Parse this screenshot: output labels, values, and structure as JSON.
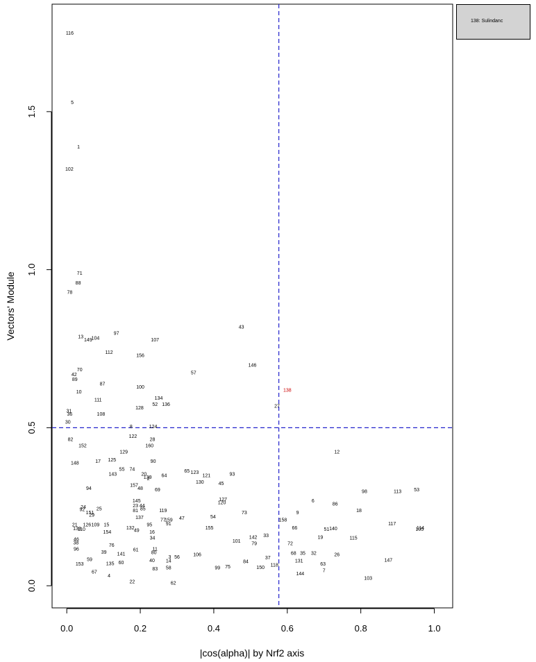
{
  "chart_data": {
    "type": "scatter",
    "xlabel": "|cos(alpha)| by Nrf2 axis",
    "ylabel": "Vectors' Module",
    "xlim": [
      -0.04,
      1.05
    ],
    "ylim": [
      -0.07,
      1.84
    ],
    "x_ticks": [
      "0.0",
      "0.2",
      "0.4",
      "0.6",
      "0.8",
      "1.0"
    ],
    "y_ticks": [
      "0.0",
      "0.5",
      "1.0",
      "1.5"
    ],
    "x_tick_values": [
      0,
      0.2,
      0.4,
      0.6,
      0.8,
      1.0
    ],
    "y_tick_values": [
      0,
      0.5,
      1.0,
      1.5
    ],
    "threshold_x": 0.577,
    "threshold_y": 0.5,
    "threshold_color": "#2222cc",
    "highlight_color": "#cc0000",
    "legend": "138: Sulindanc",
    "points": [
      {
        "label": "116",
        "x": 0.008,
        "y": 1.75
      },
      {
        "label": "5",
        "x": 0.015,
        "y": 1.53
      },
      {
        "label": "1",
        "x": 0.032,
        "y": 1.39
      },
      {
        "label": "102",
        "x": 0.007,
        "y": 1.32
      },
      {
        "label": "71",
        "x": 0.035,
        "y": 0.99
      },
      {
        "label": "88",
        "x": 0.031,
        "y": 0.96
      },
      {
        "label": "78",
        "x": 0.008,
        "y": 0.93
      },
      {
        "label": "43",
        "x": 0.475,
        "y": 0.82
      },
      {
        "label": "97",
        "x": 0.135,
        "y": 0.8
      },
      {
        "label": "13",
        "x": 0.038,
        "y": 0.79
      },
      {
        "label": "149",
        "x": 0.058,
        "y": 0.78
      },
      {
        "label": "104",
        "x": 0.078,
        "y": 0.785
      },
      {
        "label": "107",
        "x": 0.24,
        "y": 0.78
      },
      {
        "label": "112",
        "x": 0.115,
        "y": 0.74
      },
      {
        "label": "156",
        "x": 0.2,
        "y": 0.73
      },
      {
        "label": "146",
        "x": 0.505,
        "y": 0.7
      },
      {
        "label": "57",
        "x": 0.345,
        "y": 0.675
      },
      {
        "label": "70",
        "x": 0.035,
        "y": 0.685
      },
      {
        "label": "42",
        "x": 0.02,
        "y": 0.67
      },
      {
        "label": "89",
        "x": 0.022,
        "y": 0.655
      },
      {
        "label": "87",
        "x": 0.097,
        "y": 0.64
      },
      {
        "label": "100",
        "x": 0.2,
        "y": 0.63
      },
      {
        "label": "138",
        "x": 0.6,
        "y": 0.62,
        "highlight": true
      },
      {
        "label": "10",
        "x": 0.033,
        "y": 0.615
      },
      {
        "label": "134",
        "x": 0.25,
        "y": 0.595
      },
      {
        "label": "111",
        "x": 0.085,
        "y": 0.59
      },
      {
        "label": "52",
        "x": 0.24,
        "y": 0.575
      },
      {
        "label": "136",
        "x": 0.27,
        "y": 0.575
      },
      {
        "label": "27",
        "x": 0.572,
        "y": 0.57
      },
      {
        "label": "128",
        "x": 0.198,
        "y": 0.565
      },
      {
        "label": "31",
        "x": 0.006,
        "y": 0.555
      },
      {
        "label": "36",
        "x": 0.008,
        "y": 0.545
      },
      {
        "label": "108",
        "x": 0.093,
        "y": 0.545
      },
      {
        "label": "30",
        "x": 0.003,
        "y": 0.52
      },
      {
        "label": "8",
        "x": 0.175,
        "y": 0.505
      },
      {
        "label": "124",
        "x": 0.235,
        "y": 0.505
      },
      {
        "label": "122",
        "x": 0.18,
        "y": 0.475
      },
      {
        "label": "82",
        "x": 0.01,
        "y": 0.465
      },
      {
        "label": "28",
        "x": 0.233,
        "y": 0.465
      },
      {
        "label": "152",
        "x": 0.043,
        "y": 0.445
      },
      {
        "label": "160",
        "x": 0.225,
        "y": 0.445
      },
      {
        "label": "12",
        "x": 0.735,
        "y": 0.425
      },
      {
        "label": "129",
        "x": 0.155,
        "y": 0.425
      },
      {
        "label": "125",
        "x": 0.123,
        "y": 0.4
      },
      {
        "label": "17",
        "x": 0.085,
        "y": 0.395
      },
      {
        "label": "90",
        "x": 0.235,
        "y": 0.395
      },
      {
        "label": "148",
        "x": 0.022,
        "y": 0.39
      },
      {
        "label": "55",
        "x": 0.15,
        "y": 0.37
      },
      {
        "label": "74",
        "x": 0.178,
        "y": 0.37
      },
      {
        "label": "65",
        "x": 0.327,
        "y": 0.365
      },
      {
        "label": "123",
        "x": 0.348,
        "y": 0.36
      },
      {
        "label": "93",
        "x": 0.45,
        "y": 0.355
      },
      {
        "label": "121",
        "x": 0.38,
        "y": 0.35
      },
      {
        "label": "143",
        "x": 0.125,
        "y": 0.355
      },
      {
        "label": "20",
        "x": 0.21,
        "y": 0.355
      },
      {
        "label": "139",
        "x": 0.22,
        "y": 0.345
      },
      {
        "label": "64",
        "x": 0.265,
        "y": 0.35
      },
      {
        "label": "2",
        "x": 0.222,
        "y": 0.34
      },
      {
        "label": "130",
        "x": 0.362,
        "y": 0.33
      },
      {
        "label": "45",
        "x": 0.42,
        "y": 0.325
      },
      {
        "label": "157",
        "x": 0.183,
        "y": 0.32
      },
      {
        "label": "48",
        "x": 0.2,
        "y": 0.31
      },
      {
        "label": "94",
        "x": 0.06,
        "y": 0.31
      },
      {
        "label": "69",
        "x": 0.247,
        "y": 0.305
      },
      {
        "label": "98",
        "x": 0.81,
        "y": 0.3
      },
      {
        "label": "113",
        "x": 0.9,
        "y": 0.3
      },
      {
        "label": "53",
        "x": 0.952,
        "y": 0.305
      },
      {
        "label": "127",
        "x": 0.425,
        "y": 0.275
      },
      {
        "label": "6",
        "x": 0.67,
        "y": 0.27
      },
      {
        "label": "145",
        "x": 0.19,
        "y": 0.27
      },
      {
        "label": "120",
        "x": 0.422,
        "y": 0.265
      },
      {
        "label": "86",
        "x": 0.73,
        "y": 0.26
      },
      {
        "label": "23",
        "x": 0.187,
        "y": 0.255
      },
      {
        "label": "44",
        "x": 0.205,
        "y": 0.255
      },
      {
        "label": "24",
        "x": 0.045,
        "y": 0.25
      },
      {
        "label": "92",
        "x": 0.042,
        "y": 0.243
      },
      {
        "label": "85",
        "x": 0.207,
        "y": 0.245
      },
      {
        "label": "25",
        "x": 0.088,
        "y": 0.245
      },
      {
        "label": "18",
        "x": 0.795,
        "y": 0.24
      },
      {
        "label": "81",
        "x": 0.187,
        "y": 0.24
      },
      {
        "label": "119",
        "x": 0.262,
        "y": 0.24
      },
      {
        "label": "151",
        "x": 0.063,
        "y": 0.233
      },
      {
        "label": "73",
        "x": 0.483,
        "y": 0.233
      },
      {
        "label": "9",
        "x": 0.628,
        "y": 0.233
      },
      {
        "label": "29",
        "x": 0.068,
        "y": 0.225
      },
      {
        "label": "137",
        "x": 0.198,
        "y": 0.218
      },
      {
        "label": "54",
        "x": 0.398,
        "y": 0.22
      },
      {
        "label": "47",
        "x": 0.313,
        "y": 0.215
      },
      {
        "label": "77",
        "x": 0.262,
        "y": 0.21
      },
      {
        "label": "159",
        "x": 0.277,
        "y": 0.21
      },
      {
        "label": "158",
        "x": 0.588,
        "y": 0.21
      },
      {
        "label": "91",
        "x": 0.277,
        "y": 0.198
      },
      {
        "label": "95",
        "x": 0.225,
        "y": 0.195
      },
      {
        "label": "21",
        "x": 0.022,
        "y": 0.195
      },
      {
        "label": "126",
        "x": 0.055,
        "y": 0.195
      },
      {
        "label": "109",
        "x": 0.078,
        "y": 0.195
      },
      {
        "label": "15",
        "x": 0.108,
        "y": 0.195
      },
      {
        "label": "117",
        "x": 0.885,
        "y": 0.198
      },
      {
        "label": "133",
        "x": 0.028,
        "y": 0.182
      },
      {
        "label": "110",
        "x": 0.04,
        "y": 0.18
      },
      {
        "label": "132",
        "x": 0.173,
        "y": 0.185
      },
      {
        "label": "49",
        "x": 0.19,
        "y": 0.177
      },
      {
        "label": "66",
        "x": 0.62,
        "y": 0.185
      },
      {
        "label": "51",
        "x": 0.707,
        "y": 0.18
      },
      {
        "label": "140",
        "x": 0.725,
        "y": 0.182
      },
      {
        "label": "155",
        "x": 0.388,
        "y": 0.185
      },
      {
        "label": "114",
        "x": 0.962,
        "y": 0.185
      },
      {
        "label": "105",
        "x": 0.96,
        "y": 0.18
      },
      {
        "label": "154",
        "x": 0.11,
        "y": 0.172
      },
      {
        "label": "16",
        "x": 0.232,
        "y": 0.172
      },
      {
        "label": "34",
        "x": 0.233,
        "y": 0.153
      },
      {
        "label": "19",
        "x": 0.69,
        "y": 0.155
      },
      {
        "label": "115",
        "x": 0.78,
        "y": 0.153
      },
      {
        "label": "142",
        "x": 0.507,
        "y": 0.155
      },
      {
        "label": "33",
        "x": 0.542,
        "y": 0.16
      },
      {
        "label": "46",
        "x": 0.026,
        "y": 0.148
      },
      {
        "label": "101",
        "x": 0.462,
        "y": 0.143
      },
      {
        "label": "38",
        "x": 0.025,
        "y": 0.138
      },
      {
        "label": "79",
        "x": 0.51,
        "y": 0.135
      },
      {
        "label": "72",
        "x": 0.608,
        "y": 0.135
      },
      {
        "label": "76",
        "x": 0.122,
        "y": 0.13
      },
      {
        "label": "96",
        "x": 0.026,
        "y": 0.118
      },
      {
        "label": "11",
        "x": 0.24,
        "y": 0.118
      },
      {
        "label": "61",
        "x": 0.188,
        "y": 0.115
      },
      {
        "label": "39",
        "x": 0.101,
        "y": 0.108
      },
      {
        "label": "80",
        "x": 0.237,
        "y": 0.107
      },
      {
        "label": "68",
        "x": 0.617,
        "y": 0.105
      },
      {
        "label": "35",
        "x": 0.642,
        "y": 0.105
      },
      {
        "label": "32",
        "x": 0.672,
        "y": 0.105
      },
      {
        "label": "26",
        "x": 0.735,
        "y": 0.1
      },
      {
        "label": "141",
        "x": 0.148,
        "y": 0.102
      },
      {
        "label": "106",
        "x": 0.355,
        "y": 0.1
      },
      {
        "label": "3",
        "x": 0.28,
        "y": 0.093
      },
      {
        "label": "56",
        "x": 0.3,
        "y": 0.093
      },
      {
        "label": "37",
        "x": 0.547,
        "y": 0.09
      },
      {
        "label": "59",
        "x": 0.062,
        "y": 0.085
      },
      {
        "label": "40",
        "x": 0.232,
        "y": 0.082
      },
      {
        "label": "14",
        "x": 0.277,
        "y": 0.08
      },
      {
        "label": "131",
        "x": 0.632,
        "y": 0.08
      },
      {
        "label": "147",
        "x": 0.875,
        "y": 0.083
      },
      {
        "label": "84",
        "x": 0.487,
        "y": 0.078
      },
      {
        "label": "60",
        "x": 0.148,
        "y": 0.075
      },
      {
        "label": "135",
        "x": 0.118,
        "y": 0.072
      },
      {
        "label": "153",
        "x": 0.035,
        "y": 0.07
      },
      {
        "label": "63",
        "x": 0.697,
        "y": 0.07
      },
      {
        "label": "118",
        "x": 0.565,
        "y": 0.067
      },
      {
        "label": "75",
        "x": 0.438,
        "y": 0.062
      },
      {
        "label": "150",
        "x": 0.527,
        "y": 0.06
      },
      {
        "label": "99",
        "x": 0.41,
        "y": 0.058
      },
      {
        "label": "83",
        "x": 0.24,
        "y": 0.055
      },
      {
        "label": "58",
        "x": 0.277,
        "y": 0.058
      },
      {
        "label": "7",
        "x": 0.7,
        "y": 0.05
      },
      {
        "label": "67",
        "x": 0.075,
        "y": 0.045
      },
      {
        "label": "144",
        "x": 0.635,
        "y": 0.04
      },
      {
        "label": "4",
        "x": 0.115,
        "y": 0.033
      },
      {
        "label": "103",
        "x": 0.82,
        "y": 0.025
      },
      {
        "label": "22",
        "x": 0.178,
        "y": 0.015
      },
      {
        "label": "62",
        "x": 0.29,
        "y": 0.01
      }
    ]
  }
}
